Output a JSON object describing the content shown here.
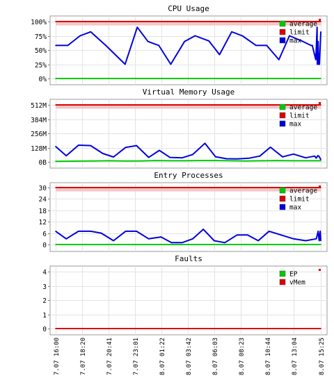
{
  "chart_data": [
    {
      "type": "line",
      "title": "CPU Usage",
      "xlabel": "",
      "ylabel": "",
      "ylim": [
        0,
        100
      ],
      "yticks": [
        0,
        25,
        50,
        75,
        100
      ],
      "ytick_labels": [
        "0%",
        "25%",
        "50%",
        "75%",
        "100%"
      ],
      "grid": true,
      "legend_position": "top-right",
      "series": [
        {
          "name": "average",
          "color": "#00cc00",
          "x": [
            0,
            100
          ],
          "values": [
            0,
            0
          ]
        },
        {
          "name": "limit",
          "color": "#dd0000",
          "x": [
            0,
            100
          ],
          "values": [
            100,
            100
          ]
        },
        {
          "name": "max",
          "color": "#0000dd",
          "x": [
            0,
            4.6,
            9.2,
            13.2,
            18.9,
            26.2,
            30.8,
            34.8,
            38.9,
            43.4,
            48.6,
            52.6,
            57.8,
            61.8,
            66.4,
            70.4,
            75.6,
            79.6,
            84.2,
            88.2,
            92.8,
            96.3,
            96.8,
            98.1,
            98.4,
            98.6,
            98.7,
            99.0,
            99.2,
            99.5,
            100
          ],
          "values": [
            58,
            58,
            75,
            82,
            58,
            25,
            90,
            65,
            58,
            25,
            65,
            75,
            66,
            42,
            82,
            75,
            58,
            58,
            33,
            75,
            66,
            58,
            58,
            33,
            65,
            90,
            25,
            65,
            25,
            25,
            82
          ]
        }
      ]
    },
    {
      "type": "line",
      "title": "Virtual Memory Usage",
      "xlabel": "",
      "ylabel": "",
      "ylim": [
        0,
        512
      ],
      "yticks": [
        0,
        128,
        256,
        384,
        512
      ],
      "ytick_labels": [
        "0B",
        "128M",
        "256M",
        "384M",
        "512M"
      ],
      "grid": true,
      "legend_position": "top-right",
      "series": [
        {
          "name": "average",
          "color": "#00cc00",
          "x": [
            0,
            14.4,
            20.1,
            25.9,
            31.6,
            37.4,
            43.1,
            48.9,
            54.6,
            60.3,
            66.1,
            71.8,
            77.6,
            83.3,
            89.1,
            94.8,
            100
          ],
          "values": [
            5,
            8,
            10,
            8,
            8,
            12,
            10,
            10,
            12,
            12,
            10,
            8,
            10,
            12,
            10,
            10,
            10
          ]
        },
        {
          "name": "limit",
          "color": "#dd0000",
          "x": [
            0,
            100
          ],
          "values": [
            512,
            512
          ]
        },
        {
          "name": "max",
          "color": "#0000dd",
          "x": [
            0,
            4.0,
            8.6,
            13.2,
            17.8,
            21.8,
            26.4,
            30.5,
            35.1,
            39.1,
            43.1,
            47.7,
            51.7,
            56.3,
            60.3,
            64.4,
            68.4,
            73.0,
            77.0,
            81.0,
            85.6,
            89.7,
            94.3,
            97.7,
            98.3,
            98.9,
            99.4,
            100
          ],
          "values": [
            138,
            55,
            150,
            146,
            75,
            44,
            130,
            146,
            40,
            103,
            40,
            36,
            66,
            167,
            46,
            28,
            27,
            33,
            52,
            132,
            45,
            70,
            36,
            52,
            34,
            56,
            48,
            20
          ]
        }
      ]
    },
    {
      "type": "line",
      "title": "Entry Processes",
      "xlabel": "",
      "ylabel": "",
      "ylim": [
        0,
        30
      ],
      "yticks": [
        0,
        6,
        12,
        18,
        24,
        30
      ],
      "ytick_labels": [
        "0",
        "6",
        "12",
        "18",
        "24",
        "30"
      ],
      "grid": true,
      "legend_position": "top-right",
      "series": [
        {
          "name": "average",
          "color": "#00cc00",
          "x": [
            0,
            100
          ],
          "values": [
            0,
            0
          ]
        },
        {
          "name": "limit",
          "color": "#dd0000",
          "x": [
            0,
            100
          ],
          "values": [
            30,
            30
          ]
        },
        {
          "name": "max",
          "color": "#0000dd",
          "x": [
            0,
            4.0,
            8.6,
            13.2,
            17.2,
            21.8,
            26.4,
            30.5,
            35.1,
            39.7,
            43.7,
            47.7,
            51.7,
            55.7,
            59.8,
            63.8,
            68.4,
            72.4,
            76.4,
            80.5,
            85.1,
            89.7,
            94.3,
            98.3,
            98.7,
            99.0,
            99.4,
            99.8,
            100
          ],
          "values": [
            7,
            3,
            7,
            7,
            6,
            2,
            7,
            7,
            3,
            4,
            1,
            1,
            3,
            8,
            2,
            1,
            5,
            5,
            2,
            7,
            5,
            3,
            2,
            3,
            5,
            7,
            2,
            7,
            2
          ]
        }
      ]
    },
    {
      "type": "line",
      "title": "Faults",
      "xlabel": "",
      "ylabel": "",
      "ylim": [
        0,
        4
      ],
      "yticks": [
        0,
        1,
        2,
        3,
        4
      ],
      "ytick_labels": [
        "0",
        "1",
        "2",
        "3",
        "4"
      ],
      "grid": true,
      "legend_position": "top-right",
      "series": [
        {
          "name": "EP",
          "color": "#00cc00",
          "x": [
            0,
            100
          ],
          "values": [
            0,
            0
          ]
        },
        {
          "name": "vMem",
          "color": "#dd0000",
          "x": [
            0,
            100
          ],
          "values": [
            0,
            0
          ]
        }
      ],
      "x_tick_labels": [
        "7.07 16:00",
        "7.07 18:20",
        "7.07 20:41",
        "7.07 23:01",
        "8.07 01:22",
        "8.07 03:42",
        "8.07 06:03",
        "8.07 08:23",
        "8.07 10:44",
        "8.07 13:04",
        "8.07 15:25"
      ]
    }
  ]
}
